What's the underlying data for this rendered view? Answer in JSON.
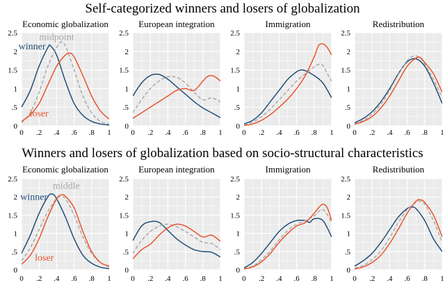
{
  "row_titles": [
    "Self-categorized winners and losers of globalization",
    "Winners and losers of globalization based on socio-structural characteristics"
  ],
  "colors": {
    "winner": "#1f4e79",
    "middle": "#a9a9a9",
    "loser": "#e8542c",
    "panel_bg": "#ebebeb",
    "grid": "#ffffff"
  },
  "chart_data": [
    {
      "type": "line",
      "title": "Economic globalization",
      "xlim": [
        0,
        1
      ],
      "ylim": [
        0,
        2.5
      ],
      "xticks": [
        0,
        0.2,
        0.4,
        0.6,
        0.8,
        1
      ],
      "xtick_labels": [
        "0",
        ".2",
        ".4",
        ".6",
        ".8",
        "1"
      ],
      "yticks": [
        0,
        0.5,
        1,
        1.5,
        2,
        2.5
      ],
      "ytick_labels": [
        "0",
        ".5",
        "1",
        "1.5",
        "2",
        "2.5"
      ],
      "series": [
        {
          "name": "winner",
          "dash": "solid",
          "x": [
            0,
            0.1,
            0.2,
            0.3,
            0.33,
            0.4,
            0.5,
            0.6,
            0.7,
            0.8,
            0.9,
            1
          ],
          "y": [
            0.5,
            0.95,
            1.6,
            2.1,
            2.15,
            1.9,
            1.2,
            0.6,
            0.28,
            0.12,
            0.05,
            0.02
          ]
        },
        {
          "name": "midpoint",
          "dash": "dashed",
          "x": [
            0,
            0.1,
            0.2,
            0.3,
            0.4,
            0.45,
            0.5,
            0.6,
            0.7,
            0.8,
            0.9,
            1
          ],
          "y": [
            0.08,
            0.35,
            0.9,
            1.6,
            2.1,
            2.25,
            2.15,
            1.5,
            0.8,
            0.35,
            0.12,
            0.05
          ]
        },
        {
          "name": "loser",
          "dash": "solid",
          "x": [
            0,
            0.1,
            0.2,
            0.3,
            0.4,
            0.5,
            0.55,
            0.6,
            0.7,
            0.8,
            0.9,
            1
          ],
          "y": [
            0.12,
            0.3,
            0.6,
            1.1,
            1.6,
            1.9,
            1.95,
            1.85,
            1.35,
            0.8,
            0.4,
            0.18
          ]
        }
      ],
      "annotations": [
        {
          "text": "winner",
          "series": "winner",
          "x": 0.12,
          "y": 2.05
        },
        {
          "text": "midpoint",
          "series": "midpoint",
          "x": 0.4,
          "y": 2.3
        },
        {
          "text": "loser",
          "series": "loser",
          "x": 0.2,
          "y": 0.25
        }
      ]
    },
    {
      "type": "line",
      "title": "European integration",
      "xlim": [
        0,
        1
      ],
      "ylim": [
        0,
        2.5
      ],
      "xticks": [
        0,
        0.2,
        0.4,
        0.6,
        0.8,
        1
      ],
      "xtick_labels": [
        "0",
        ".2",
        ".4",
        ".6",
        ".8",
        "1"
      ],
      "yticks": [
        0,
        0.5,
        1,
        1.5,
        2,
        2.5
      ],
      "ytick_labels": [
        "0",
        ".5",
        "1",
        "1.5",
        "2",
        "2.5"
      ],
      "series": [
        {
          "name": "winner",
          "dash": "solid",
          "x": [
            0,
            0.1,
            0.2,
            0.3,
            0.4,
            0.5,
            0.6,
            0.7,
            0.8,
            0.9,
            1
          ],
          "y": [
            0.8,
            1.15,
            1.35,
            1.38,
            1.25,
            1.05,
            0.85,
            0.65,
            0.48,
            0.35,
            0.22
          ]
        },
        {
          "name": "midpoint",
          "dash": "dashed",
          "x": [
            0,
            0.1,
            0.2,
            0.3,
            0.4,
            0.5,
            0.6,
            0.7,
            0.8,
            0.9,
            1
          ],
          "y": [
            0.35,
            0.7,
            1.0,
            1.2,
            1.32,
            1.3,
            1.15,
            0.9,
            0.7,
            0.75,
            0.65
          ]
        },
        {
          "name": "loser",
          "dash": "solid",
          "x": [
            0,
            0.1,
            0.2,
            0.3,
            0.4,
            0.5,
            0.6,
            0.7,
            0.8,
            0.85,
            0.9,
            0.95,
            1
          ],
          "y": [
            0.2,
            0.35,
            0.5,
            0.65,
            0.8,
            0.95,
            1.0,
            0.95,
            1.2,
            1.32,
            1.35,
            1.3,
            1.2
          ]
        }
      ],
      "annotations": []
    },
    {
      "type": "line",
      "title": "Immigration",
      "xlim": [
        0,
        1
      ],
      "ylim": [
        0,
        2.5
      ],
      "xticks": [
        0,
        0.2,
        0.4,
        0.6,
        0.8,
        1
      ],
      "xtick_labels": [
        "0",
        ".2",
        ".4",
        ".6",
        ".8",
        "1"
      ],
      "yticks": [
        0,
        0.5,
        1,
        1.5,
        2,
        2.5
      ],
      "ytick_labels": [
        "0",
        ".5",
        "1",
        "1.5",
        "2",
        "2.5"
      ],
      "series": [
        {
          "name": "winner",
          "dash": "solid",
          "x": [
            0,
            0.1,
            0.2,
            0.3,
            0.4,
            0.5,
            0.6,
            0.65,
            0.7,
            0.8,
            0.9,
            1
          ],
          "y": [
            0.05,
            0.15,
            0.35,
            0.65,
            0.95,
            1.25,
            1.45,
            1.5,
            1.48,
            1.35,
            1.15,
            0.75
          ]
        },
        {
          "name": "midpoint",
          "dash": "dashed",
          "x": [
            0,
            0.1,
            0.2,
            0.3,
            0.4,
            0.5,
            0.6,
            0.7,
            0.8,
            0.85,
            0.9,
            0.95,
            1
          ],
          "y": [
            0.03,
            0.1,
            0.25,
            0.45,
            0.7,
            0.95,
            1.2,
            1.4,
            1.58,
            1.65,
            1.62,
            1.4,
            1.2
          ]
        },
        {
          "name": "loser",
          "dash": "solid",
          "x": [
            0,
            0.1,
            0.2,
            0.3,
            0.4,
            0.5,
            0.6,
            0.7,
            0.8,
            0.85,
            0.9,
            0.95,
            1
          ],
          "y": [
            0.01,
            0.05,
            0.15,
            0.3,
            0.5,
            0.72,
            1.0,
            1.35,
            1.85,
            2.15,
            2.2,
            2.1,
            1.9
          ]
        }
      ],
      "annotations": []
    },
    {
      "type": "line",
      "title": "Redistribution",
      "xlim": [
        0,
        1
      ],
      "ylim": [
        0,
        2.5
      ],
      "xticks": [
        0,
        0.2,
        0.4,
        0.6,
        0.8,
        1
      ],
      "xtick_labels": [
        "0",
        ".2",
        ".4",
        ".6",
        ".8",
        "1"
      ],
      "yticks": [
        0,
        0.5,
        1,
        1.5,
        2,
        2.5
      ],
      "ytick_labels": [
        "0",
        ".5",
        "1",
        "1.5",
        "2",
        "2.5"
      ],
      "series": [
        {
          "name": "winner",
          "dash": "solid",
          "x": [
            0,
            0.1,
            0.2,
            0.3,
            0.4,
            0.5,
            0.6,
            0.7,
            0.8,
            0.9,
            1
          ],
          "y": [
            0.08,
            0.2,
            0.38,
            0.65,
            1.0,
            1.4,
            1.72,
            1.8,
            1.6,
            1.15,
            0.6
          ]
        },
        {
          "name": "midpoint",
          "dash": "dashed",
          "x": [
            0,
            0.1,
            0.2,
            0.3,
            0.4,
            0.5,
            0.6,
            0.68,
            0.75,
            0.8,
            0.9,
            1
          ],
          "y": [
            0.05,
            0.15,
            0.32,
            0.58,
            0.95,
            1.38,
            1.75,
            1.88,
            1.82,
            1.65,
            1.25,
            0.75
          ]
        },
        {
          "name": "loser",
          "dash": "solid",
          "x": [
            0,
            0.1,
            0.2,
            0.3,
            0.4,
            0.5,
            0.6,
            0.7,
            0.75,
            0.8,
            0.9,
            1
          ],
          "y": [
            0.04,
            0.12,
            0.25,
            0.48,
            0.8,
            1.2,
            1.6,
            1.82,
            1.83,
            1.7,
            1.4,
            0.9
          ]
        }
      ],
      "annotations": []
    },
    {
      "type": "line",
      "title": "Economic globalization",
      "xlim": [
        0,
        1
      ],
      "ylim": [
        0,
        2.5
      ],
      "xticks": [
        0,
        0.2,
        0.4,
        0.6,
        0.8,
        1
      ],
      "xtick_labels": [
        "0",
        ".2",
        ".4",
        ".6",
        ".8",
        "1"
      ],
      "yticks": [
        0,
        0.5,
        1,
        1.5,
        2,
        2.5
      ],
      "ytick_labels": [
        "0",
        ".5",
        "1",
        "1.5",
        "2",
        "2.5"
      ],
      "series": [
        {
          "name": "winner",
          "dash": "solid",
          "x": [
            0,
            0.1,
            0.2,
            0.3,
            0.35,
            0.4,
            0.5,
            0.6,
            0.7,
            0.8,
            0.9,
            1
          ],
          "y": [
            0.45,
            0.95,
            1.55,
            2.0,
            2.08,
            1.95,
            1.45,
            0.85,
            0.4,
            0.18,
            0.07,
            0.03
          ]
        },
        {
          "name": "middle",
          "dash": "dashed",
          "x": [
            0,
            0.1,
            0.2,
            0.3,
            0.4,
            0.45,
            0.5,
            0.6,
            0.7,
            0.8,
            0.9,
            1
          ],
          "y": [
            0.25,
            0.6,
            1.1,
            1.6,
            1.95,
            2.0,
            1.95,
            1.5,
            0.9,
            0.45,
            0.2,
            0.08
          ]
        },
        {
          "name": "loser",
          "dash": "solid",
          "x": [
            0,
            0.1,
            0.2,
            0.3,
            0.4,
            0.45,
            0.5,
            0.6,
            0.7,
            0.8,
            0.9,
            1
          ],
          "y": [
            0.15,
            0.4,
            0.85,
            1.45,
            1.95,
            2.05,
            2.02,
            1.7,
            1.05,
            0.5,
            0.2,
            0.1
          ]
        }
      ],
      "annotations": [
        {
          "text": "winner",
          "series": "winner",
          "x": 0.14,
          "y": 1.92
        },
        {
          "text": "middle",
          "series": "middle",
          "x": 0.51,
          "y": 2.22
        },
        {
          "text": "loser",
          "series": "loser",
          "x": 0.26,
          "y": 0.25
        }
      ]
    },
    {
      "type": "line",
      "title": "European integration",
      "xlim": [
        0,
        1
      ],
      "ylim": [
        0,
        2.5
      ],
      "xticks": [
        0,
        0.2,
        0.4,
        0.6,
        0.8,
        1
      ],
      "xtick_labels": [
        "0",
        ".2",
        ".4",
        ".6",
        ".8",
        "1"
      ],
      "yticks": [
        0,
        0.5,
        1,
        1.5,
        2,
        2.5
      ],
      "ytick_labels": [
        "0",
        ".5",
        "1",
        "1.5",
        "2",
        "2.5"
      ],
      "series": [
        {
          "name": "winner",
          "dash": "solid",
          "x": [
            0,
            0.1,
            0.2,
            0.3,
            0.4,
            0.5,
            0.6,
            0.7,
            0.8,
            0.9,
            1
          ],
          "y": [
            0.8,
            1.2,
            1.32,
            1.3,
            1.08,
            0.85,
            0.68,
            0.55,
            0.5,
            0.48,
            0.35
          ]
        },
        {
          "name": "middle",
          "dash": "dashed",
          "x": [
            0,
            0.1,
            0.2,
            0.3,
            0.4,
            0.5,
            0.6,
            0.7,
            0.8,
            0.9,
            1
          ],
          "y": [
            0.45,
            0.8,
            1.05,
            1.2,
            1.25,
            1.18,
            1.05,
            0.9,
            0.75,
            0.72,
            0.55
          ]
        },
        {
          "name": "loser",
          "dash": "solid",
          "x": [
            0,
            0.1,
            0.2,
            0.3,
            0.4,
            0.5,
            0.6,
            0.7,
            0.8,
            0.9,
            1
          ],
          "y": [
            0.3,
            0.55,
            0.7,
            0.95,
            1.15,
            1.25,
            1.2,
            1.05,
            0.9,
            0.95,
            0.78
          ]
        }
      ],
      "annotations": []
    },
    {
      "type": "line",
      "title": "Immigration",
      "xlim": [
        0,
        1
      ],
      "ylim": [
        0,
        2.5
      ],
      "xticks": [
        0,
        0.2,
        0.4,
        0.6,
        0.8,
        1
      ],
      "xtick_labels": [
        "0",
        ".2",
        ".4",
        ".6",
        ".8",
        "1"
      ],
      "yticks": [
        0,
        0.5,
        1,
        1.5,
        2,
        2.5
      ],
      "ytick_labels": [
        "0",
        ".5",
        "1",
        "1.5",
        "2",
        "2.5"
      ],
      "series": [
        {
          "name": "winner",
          "dash": "solid",
          "x": [
            0,
            0.1,
            0.2,
            0.3,
            0.4,
            0.5,
            0.6,
            0.7,
            0.75,
            0.8,
            0.9,
            1
          ],
          "y": [
            0.05,
            0.2,
            0.45,
            0.75,
            1.05,
            1.25,
            1.35,
            1.35,
            1.3,
            1.4,
            1.35,
            0.9
          ]
        },
        {
          "name": "middle",
          "dash": "dashed",
          "x": [
            0,
            0.1,
            0.2,
            0.3,
            0.4,
            0.5,
            0.6,
            0.7,
            0.8,
            0.9,
            1
          ],
          "y": [
            0.03,
            0.1,
            0.28,
            0.52,
            0.82,
            1.08,
            1.25,
            1.35,
            1.48,
            1.65,
            1.3
          ]
        },
        {
          "name": "loser",
          "dash": "solid",
          "x": [
            0,
            0.1,
            0.2,
            0.3,
            0.4,
            0.5,
            0.6,
            0.7,
            0.8,
            0.85,
            0.9,
            0.95,
            1
          ],
          "y": [
            0.02,
            0.08,
            0.22,
            0.45,
            0.75,
            1.0,
            1.2,
            1.3,
            1.55,
            1.7,
            1.8,
            1.7,
            1.35
          ]
        }
      ],
      "annotations": []
    },
    {
      "type": "line",
      "title": "Redistribution",
      "xlim": [
        0,
        1
      ],
      "ylim": [
        0,
        2.5
      ],
      "xticks": [
        0,
        0.2,
        0.4,
        0.6,
        0.8,
        1
      ],
      "xtick_labels": [
        "0",
        ".2",
        ".4",
        ".6",
        ".8",
        "1"
      ],
      "yticks": [
        0,
        0.5,
        1,
        1.5,
        2,
        2.5
      ],
      "ytick_labels": [
        "0",
        ".5",
        "1",
        "1.5",
        "2",
        "2.5"
      ],
      "series": [
        {
          "name": "winner",
          "dash": "solid",
          "x": [
            0,
            0.1,
            0.2,
            0.3,
            0.4,
            0.5,
            0.6,
            0.65,
            0.7,
            0.8,
            0.9,
            1
          ],
          "y": [
            0.1,
            0.25,
            0.45,
            0.75,
            1.1,
            1.45,
            1.68,
            1.72,
            1.68,
            1.35,
            0.85,
            0.5
          ]
        },
        {
          "name": "middle",
          "dash": "dashed",
          "x": [
            0,
            0.1,
            0.2,
            0.3,
            0.4,
            0.5,
            0.6,
            0.7,
            0.75,
            0.8,
            0.9,
            1
          ],
          "y": [
            0.05,
            0.12,
            0.28,
            0.52,
            0.88,
            1.3,
            1.65,
            1.85,
            1.88,
            1.8,
            1.35,
            0.75
          ]
        },
        {
          "name": "loser",
          "dash": "solid",
          "x": [
            0,
            0.1,
            0.2,
            0.3,
            0.4,
            0.5,
            0.6,
            0.7,
            0.75,
            0.8,
            0.9,
            1
          ],
          "y": [
            0.02,
            0.08,
            0.2,
            0.4,
            0.72,
            1.12,
            1.55,
            1.88,
            1.92,
            1.85,
            1.5,
            0.9
          ]
        }
      ],
      "annotations": []
    }
  ]
}
